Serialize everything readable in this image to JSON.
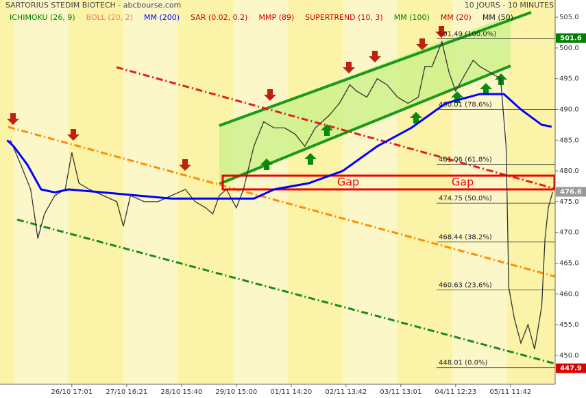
{
  "chart_data": {
    "type": "line",
    "title": "SARTORIUS STEDIM BIOTECH - abcbourse.com",
    "subtitle": "10 JOURS - 10 MINUTES",
    "indicators": [
      {
        "name": "ICHIMOKU (26, 9)",
        "color": "#008000"
      },
      {
        "name": "BOLL (20, 2)",
        "color": "#f08060"
      },
      {
        "name": "MM (200)",
        "color": "#0000ff"
      },
      {
        "name": "SAR (0.02, 0.2)",
        "color": "#d00000"
      },
      {
        "name": "MMP (89)",
        "color": "#d00000"
      },
      {
        "name": "SUPERTREND (10, 3)",
        "color": "#d00000"
      },
      {
        "name": "MM (100)",
        "color": "#008000"
      },
      {
        "name": "MM (20)",
        "color": "#d00000"
      },
      {
        "name": "MM (50)",
        "color": "#202020"
      }
    ],
    "xlim": [
      0,
      10.125
    ],
    "ylim": [
      445.3,
      507.8
    ],
    "xticks": [
      {
        "value": 1.31,
        "label": "26/10 17:01"
      },
      {
        "value": 2.31,
        "label": "27/10 16:21"
      },
      {
        "value": 3.31,
        "label": "28/10 15:40"
      },
      {
        "value": 4.31,
        "label": "29/10 15:00"
      },
      {
        "value": 5.31,
        "label": "01/11 14:20"
      },
      {
        "value": 6.31,
        "label": "02/11 13:42"
      },
      {
        "value": 7.31,
        "label": "03/11 13:01"
      },
      {
        "value": 8.31,
        "label": "04/11 12:23"
      },
      {
        "value": 9.31,
        "label": "05/11 11:42"
      }
    ],
    "yticks": [
      {
        "value": 450,
        "label": "450.0"
      },
      {
        "value": 455,
        "label": "455.0"
      },
      {
        "value": 460,
        "label": "460.0"
      },
      {
        "value": 465,
        "label": "465.0"
      },
      {
        "value": 470,
        "label": "470.0"
      },
      {
        "value": 475,
        "label": "475.0"
      },
      {
        "value": 480,
        "label": "480.0"
      },
      {
        "value": 485,
        "label": "485.0"
      },
      {
        "value": 490,
        "label": "490.0"
      },
      {
        "value": 495,
        "label": "495.0"
      },
      {
        "value": 500,
        "label": "500.0"
      },
      {
        "value": 505,
        "label": "505.0"
      }
    ],
    "series": [
      {
        "color": "#333333",
        "x": [
          0.19,
          0.38,
          0.56,
          0.69,
          0.81,
          1,
          1.19,
          1.31,
          1.44,
          1.63,
          1.88,
          2.13,
          2.25,
          2.38,
          2.63,
          2.88,
          3.13,
          3.38,
          3.56,
          3.75,
          3.88,
          4,
          4.13,
          4.31,
          4.44,
          4.63,
          4.81,
          5,
          5.19,
          5.38,
          5.56,
          5.75,
          6,
          6.19,
          6.38,
          6.5,
          6.69,
          6.88,
          7.06,
          7.25,
          7.44,
          7.63,
          7.75,
          7.88,
          8.06,
          8.19,
          8.31,
          8.5,
          8.63,
          8.75,
          8.94,
          9.13,
          9.23,
          9.28,
          9.38,
          9.5,
          9.63,
          9.75,
          9.88,
          9.94,
          10,
          10.08
        ],
        "values": [
          485,
          481,
          477,
          469,
          473,
          476,
          477,
          483,
          478,
          477,
          476,
          475,
          471,
          476,
          475,
          475,
          476,
          477,
          475,
          474,
          473,
          476,
          477,
          474,
          477,
          484,
          488,
          487,
          487,
          486,
          484,
          487,
          489,
          491,
          494,
          493,
          492,
          495,
          494,
          492,
          491,
          492,
          497,
          497,
          501,
          496,
          493,
          496,
          498,
          497,
          496,
          495,
          484,
          461,
          456,
          452,
          455,
          451,
          458,
          469,
          474,
          476.6
        ]
      },
      {
        "color": "#0000ff",
        "x": [
          0.13,
          0.25,
          0.5,
          0.75,
          1,
          1.25,
          1.88,
          2.5,
          3.13,
          3.75,
          4.25,
          4.63,
          5,
          5.63,
          6.25,
          6.88,
          7.5,
          8.13,
          8.75,
          9.19,
          9.5,
          9.88,
          10.06
        ],
        "values": [
          485,
          484,
          481,
          477,
          476.5,
          477,
          476.5,
          476,
          475.5,
          475.5,
          475.5,
          475.5,
          477,
          478,
          480,
          484,
          487,
          491,
          492.5,
          492.5,
          490,
          487.5,
          487.2
        ]
      }
    ],
    "fibonacci": [
      {
        "value": 501.49,
        "label": "501.49  (100.0%)"
      },
      {
        "value": 490.01,
        "label": "490.01  (78.6%)"
      },
      {
        "value": 481.06,
        "label": "481.06  (61.8%)"
      },
      {
        "value": 474.75,
        "label": "474.75  (50.0%)"
      },
      {
        "value": 468.44,
        "label": "468.44  (38.2%)"
      },
      {
        "value": 460.63,
        "label": "460.63  (23.6%)"
      },
      {
        "value": 448.01,
        "label": "448.01  (0.0%)"
      }
    ],
    "price_badges": [
      {
        "value": 501.6,
        "color": "#008000"
      },
      {
        "value": 476.6,
        "color": "#999999"
      },
      {
        "value": 447.9,
        "color": "#dd0000"
      }
    ],
    "annotations": [
      "Gap",
      "Gap"
    ]
  }
}
